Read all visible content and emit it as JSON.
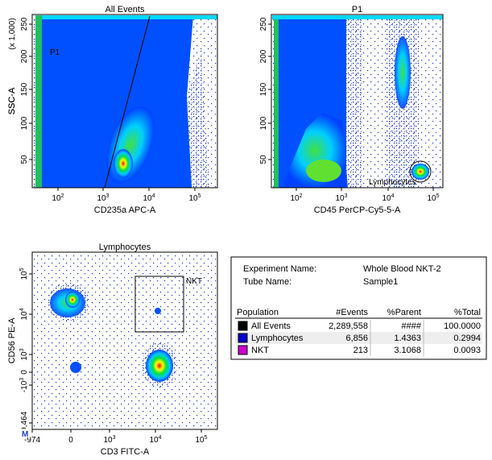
{
  "plots": [
    {
      "title": "All Events",
      "xlabel": "CD235a APC-A",
      "ylabel": "SSC-A",
      "yunit": "(x 1,000)",
      "yticks": [
        "250",
        "200",
        "150",
        "100",
        "50"
      ],
      "xticks": [
        {
          "base": "10",
          "exp": "2"
        },
        {
          "base": "10",
          "exp": "3"
        },
        {
          "base": "10",
          "exp": "4"
        },
        {
          "base": "10",
          "exp": "5"
        }
      ],
      "gates": [
        "P1"
      ]
    },
    {
      "title": "P1",
      "xlabel": "CD45 PerCP-Cy5-5-A",
      "ylabel": "SSC-A",
      "yunit": "(x 1,000)",
      "yticks": [
        "250",
        "200",
        "150",
        "100",
        "50"
      ],
      "xticks": [
        {
          "base": "10",
          "exp": "2"
        },
        {
          "base": "10",
          "exp": "3"
        },
        {
          "base": "10",
          "exp": "4"
        },
        {
          "base": "10",
          "exp": "5"
        }
      ],
      "gates": [
        "Lymphocytes"
      ]
    },
    {
      "title": "Lymphocytes",
      "xlabel": "CD3 FITC-A",
      "ylabel": "CD56 PE-A",
      "yticks": [
        {
          "base": "10",
          "exp": "5"
        },
        {
          "base": "10",
          "exp": "4"
        },
        {
          "base": "10",
          "exp": "3"
        },
        {
          "base": "0",
          "exp": ""
        },
        {
          "base": "-10",
          "exp": "3"
        },
        {
          "base": "-9,464",
          "exp": ""
        }
      ],
      "xticks": [
        {
          "base": "-974",
          "exp": ""
        },
        {
          "base": "0",
          "exp": ""
        },
        {
          "base": "10",
          "exp": "3"
        },
        {
          "base": "10",
          "exp": "4"
        },
        {
          "base": "10",
          "exp": "5"
        }
      ],
      "gates": [
        "NKT"
      ],
      "marker": "M"
    }
  ],
  "info": [
    {
      "label": "Experiment Name:",
      "value": "Whole Blood NKT-2"
    },
    {
      "label": "Tube Name:",
      "value": "Sample1"
    }
  ],
  "stats": {
    "columns": [
      "Population",
      "#Events",
      "%Parent",
      "%Total"
    ],
    "rows": [
      {
        "color": "#000000",
        "cells": [
          "All Events",
          "2,289,558",
          "####",
          "100.0000"
        ]
      },
      {
        "color": "#0000cc",
        "cells": [
          "Lymphocytes",
          "6,856",
          "1.4363",
          "0.2994"
        ]
      },
      {
        "color": "#cc00cc",
        "cells": [
          "NKT",
          "213",
          "3.1068",
          "0.0093"
        ]
      }
    ]
  }
}
